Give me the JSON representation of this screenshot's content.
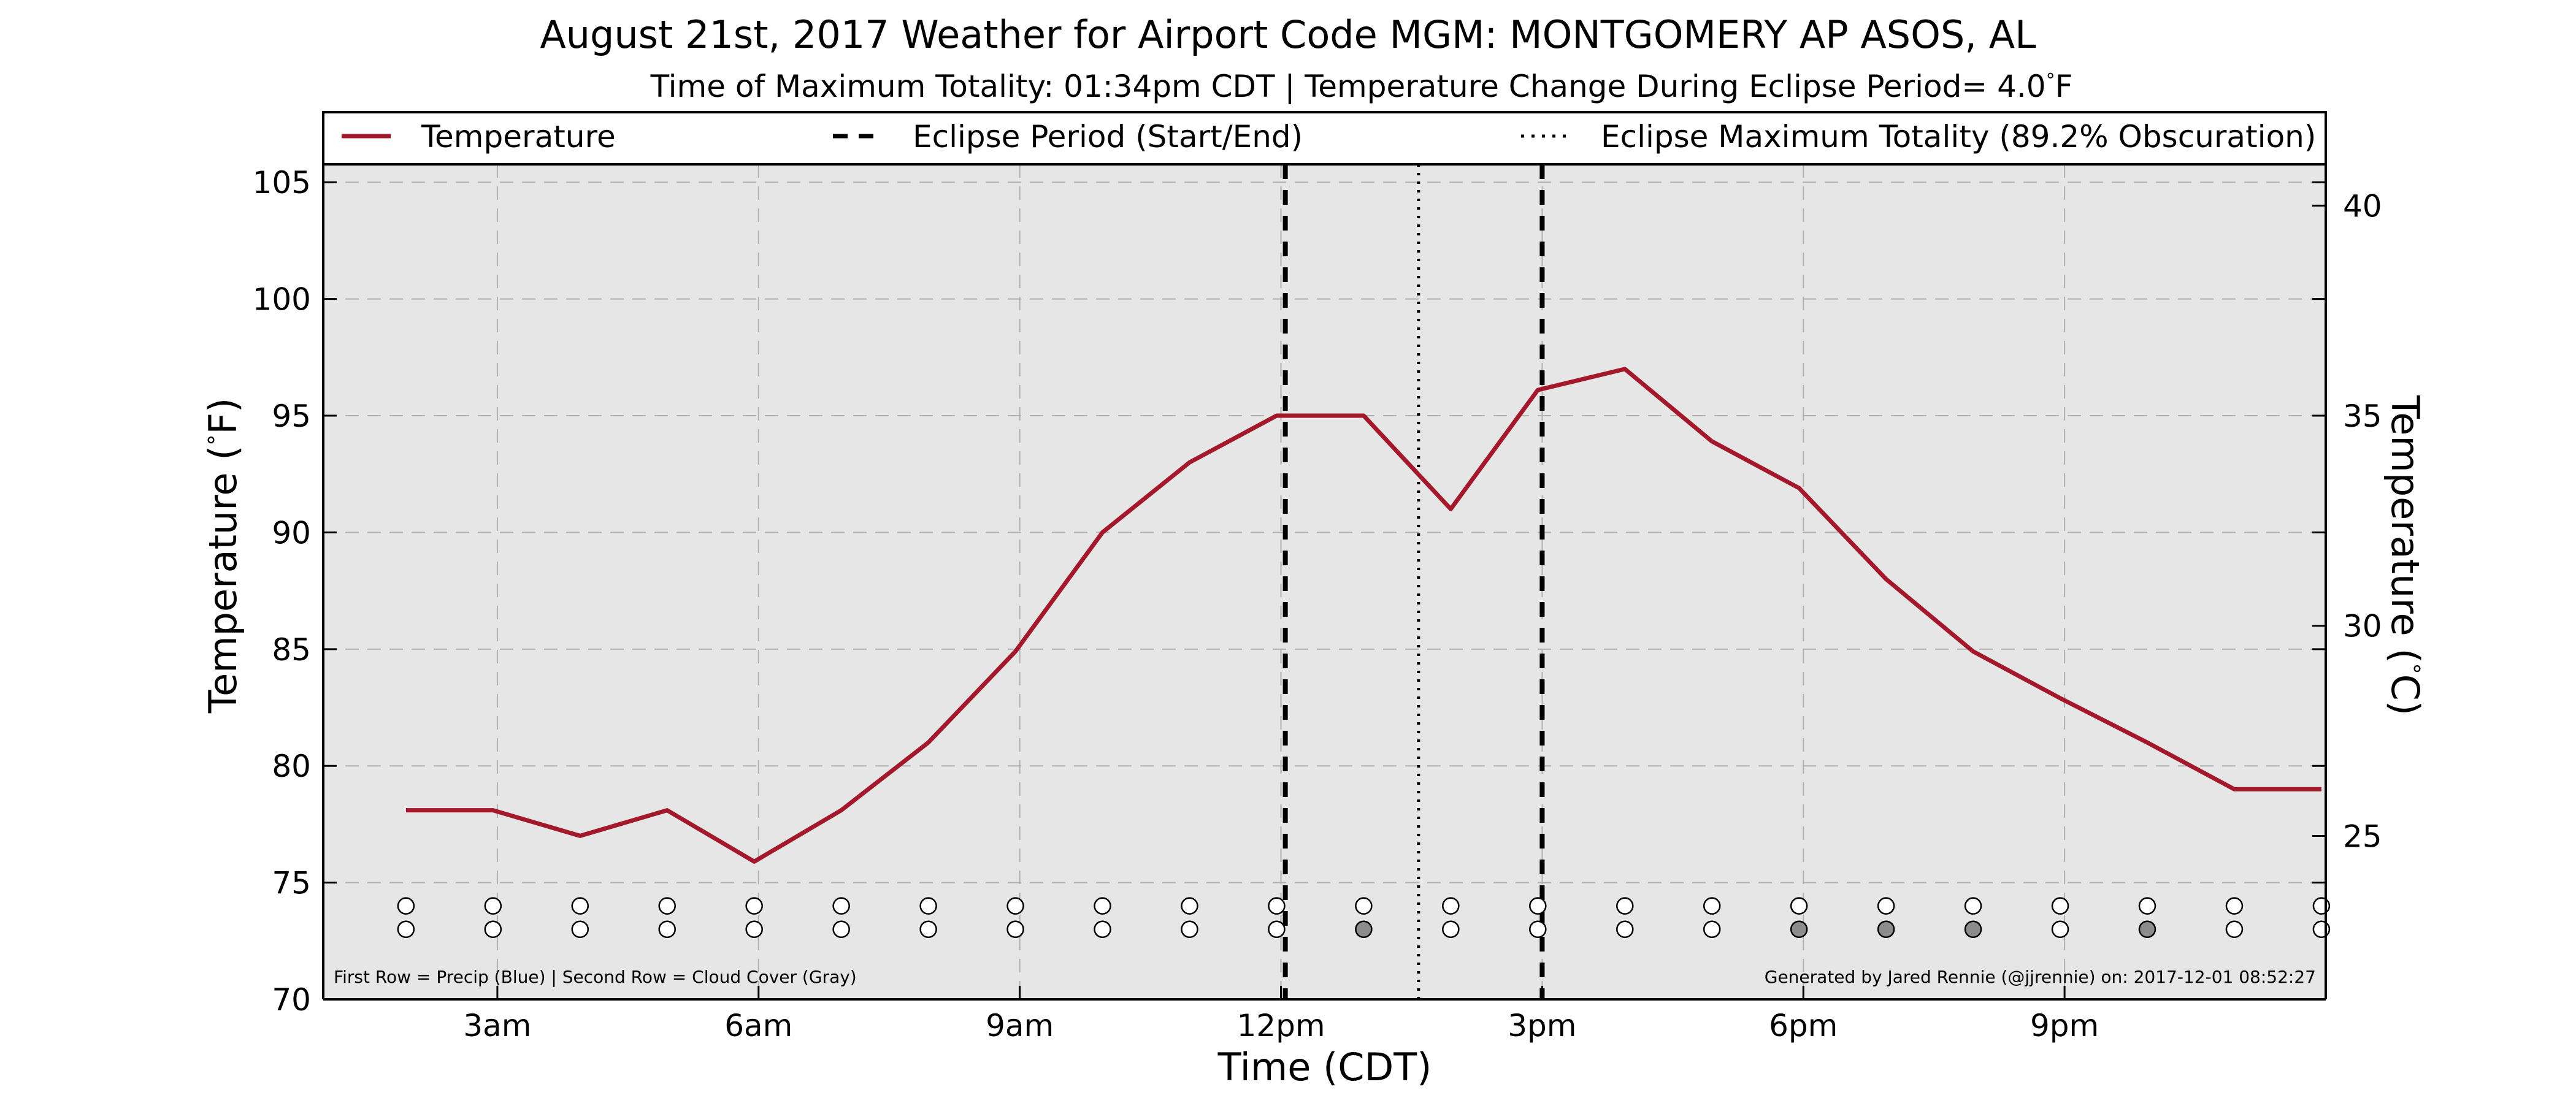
{
  "chart_data": {
    "type": "line",
    "title": "August 21st, 2017 Weather for Airport Code MGM: MONTGOMERY AP ASOS, AL",
    "subtitle": "Time of Maximum Totality: 01:34pm CDT | Temperature Change During Eclipse Period= 4.0$^\\circ$F",
    "subtitle_text": "Time of Maximum Totality: 01:34pm CDT | Temperature Change During Eclipse Period= 4.0",
    "subtitle_unit": "F",
    "xlabel": "Time (CDT)",
    "ylabel_left": "Temperature (",
    "ylabel_left_unit": "F)",
    "ylabel_right": "Temperature (",
    "ylabel_right_unit": "C)",
    "x_tick_labels": [
      "3am",
      "6am",
      "9am",
      "12pm",
      "3pm",
      "6pm",
      "9pm"
    ],
    "x_tick_hours": [
      3,
      6,
      9,
      12,
      15,
      18,
      21
    ],
    "xlim_hours": [
      1,
      24
    ],
    "ylim": [
      70,
      108
    ],
    "y_ticks": [
      70,
      75,
      80,
      85,
      90,
      95,
      100,
      105
    ],
    "y2_ticks": [
      25,
      30,
      35,
      40
    ],
    "grid": true,
    "legend_position": "top",
    "legend": [
      {
        "label": "Temperature",
        "style": "solid"
      },
      {
        "label": "Eclipse Period (Start/End)",
        "style": "dashed"
      },
      {
        "label": "Eclipse Maximum Totality (89.2% Obscuration)",
        "style": "dotted"
      }
    ],
    "series": [
      {
        "name": "Temperature",
        "color": "#a3192b",
        "x_hours": [
          1.95,
          2.95,
          3.95,
          4.95,
          5.95,
          6.95,
          7.95,
          8.95,
          9.95,
          10.95,
          11.95,
          12.95,
          13.95,
          14.95,
          15.95,
          16.95,
          17.95,
          18.95,
          19.95,
          20.95,
          21.95,
          22.95,
          23.95
        ],
        "values": [
          78.1,
          78.1,
          77.0,
          78.1,
          75.9,
          78.1,
          81.0,
          84.9,
          90.0,
          93.0,
          95.0,
          95.0,
          91.0,
          96.1,
          97.0,
          93.9,
          91.9,
          88.0,
          84.9,
          82.9,
          81.0,
          79.0,
          79.0
        ]
      }
    ],
    "eclipse_start_hour": 12.05,
    "eclipse_end_hour": 15.0,
    "eclipse_max_hour": 13.58,
    "precip_row": [
      "white",
      "white",
      "white",
      "white",
      "white",
      "white",
      "white",
      "white",
      "white",
      "white",
      "white",
      "white",
      "white",
      "white",
      "white",
      "white",
      "white",
      "white",
      "white",
      "white",
      "white",
      "white",
      "white"
    ],
    "cloud_row": [
      "white",
      "white",
      "white",
      "white",
      "white",
      "white",
      "white",
      "white",
      "white",
      "white",
      "white",
      "gray",
      "white",
      "white",
      "white",
      "white",
      "gray",
      "gray",
      "gray",
      "white",
      "gray",
      "white",
      "white"
    ],
    "marker_x_hours": [
      1.95,
      2.95,
      3.95,
      4.95,
      5.95,
      6.95,
      7.95,
      8.95,
      9.95,
      10.95,
      11.95,
      12.95,
      13.95,
      14.95,
      15.95,
      16.95,
      17.95,
      18.95,
      19.95,
      20.95,
      21.95,
      22.95,
      23.95
    ],
    "marker_row_values": [
      74,
      73
    ],
    "note_left": "First Row = Precip (Blue) | Second Row = Cloud Cover (Gray)",
    "note_right": "Generated by Jared Rennie (@jjrennie) on: 2017-12-01 08:52:27",
    "colors": {
      "plot_background": "#e6e6e6",
      "temperature_line": "#a3192b",
      "eclipse_lines": "#000000",
      "grid": "#b0b0b0",
      "gray_marker": "#8c8c8c"
    }
  }
}
